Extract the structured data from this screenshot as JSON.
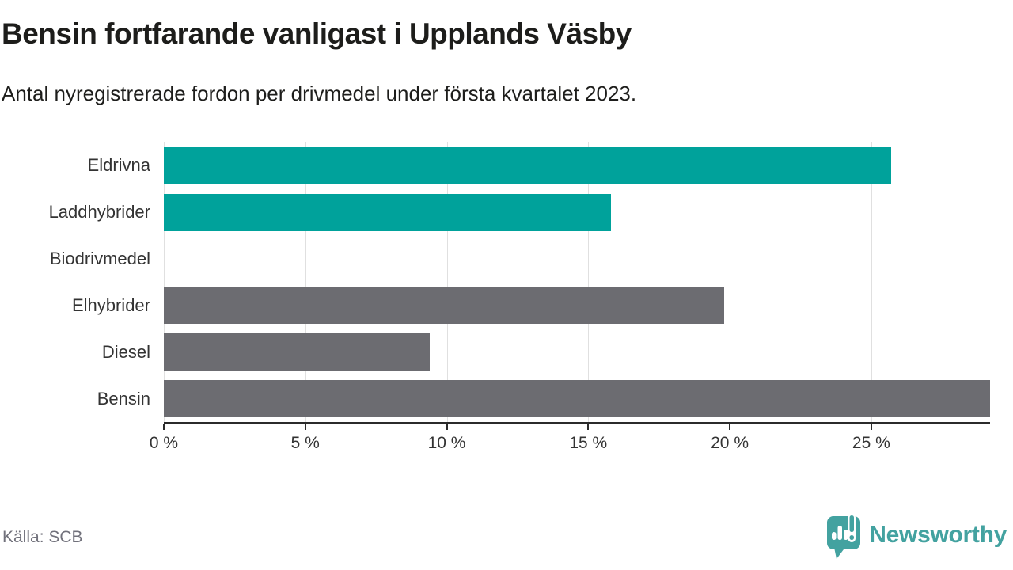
{
  "header": {
    "title": "Bensin fortfarande vanligast i Upplands Väsby",
    "subtitle": "Antal nyregistrerade fordon per drivmedel under första kvartalet 2023."
  },
  "chart_data": {
    "type": "bar",
    "orientation": "horizontal",
    "title": "Bensin fortfarande vanligast i Upplands Väsby",
    "subtitle": "Antal nyregistrerade fordon per drivmedel under första kvartalet 2023.",
    "categories": [
      "Eldrivna",
      "Laddhybrider",
      "Biodrivmedel",
      "Elhybrider",
      "Diesel",
      "Bensin"
    ],
    "values": [
      25.7,
      15.8,
      0,
      19.8,
      9.4,
      29.2
    ],
    "unit": "%",
    "xlim": [
      0,
      29.2
    ],
    "x_ticks": [
      0,
      5,
      10,
      15,
      20,
      25
    ],
    "x_tick_labels": [
      "0 %",
      "5 %",
      "10 %",
      "15 %",
      "20 %",
      "25 %"
    ],
    "grid": true,
    "legend": false,
    "bar_colors": [
      "#00a29b",
      "#00a29b",
      "#00a29b",
      "#6c6c71",
      "#6c6c71",
      "#6c6c71"
    ]
  },
  "colors": {
    "teal": "#00a29b",
    "gray": "#6c6c71",
    "gridline": "#e0e0e0",
    "axis": "#2b2b2b",
    "text_dark": "#1d1d1b",
    "text_label": "#333333",
    "text_source": "#71717b",
    "brand_teal": "#43a2a0"
  },
  "footer": {
    "source": "Källa: SCB",
    "brand": "Newsworthy"
  }
}
